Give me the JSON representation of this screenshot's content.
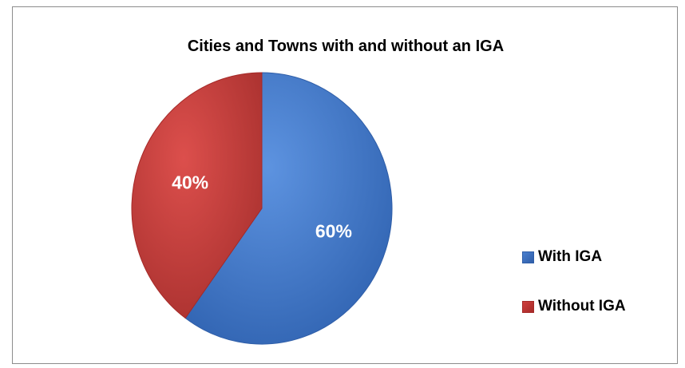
{
  "chart_data": {
    "type": "pie",
    "title": "Cities and Towns with and without an IGA",
    "legend_position": "right",
    "slices": [
      {
        "name": "With IGA",
        "value": 60,
        "label": "60%",
        "color": "#4a7fcf",
        "shade": "#2f5ea8"
      },
      {
        "name": "Without IGA",
        "value": 40,
        "label": "40%",
        "color": "#cf3f3d",
        "shade": "#a52a28"
      }
    ]
  }
}
